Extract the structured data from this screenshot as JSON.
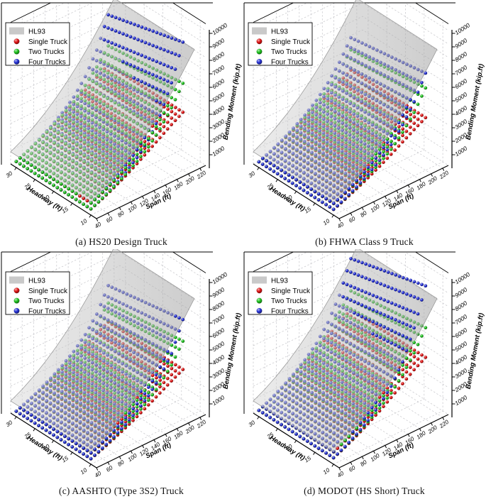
{
  "page": {
    "background": "#ffffff"
  },
  "axes": {
    "x": {
      "label": "Span (ft)",
      "ticks": [
        40,
        60,
        80,
        100,
        120,
        140,
        160,
        180,
        200,
        220
      ],
      "range": [
        40,
        230
      ]
    },
    "y": {
      "label": "Headway (ft)",
      "ticks": [
        10,
        15,
        20,
        25,
        30
      ],
      "range": [
        8.5,
        31.5
      ]
    },
    "z": {
      "label": "Bending Moment (kip.ft)",
      "ticks": [
        1000,
        2000,
        3000,
        4000,
        5000,
        6000,
        7000,
        8000,
        9000,
        10000
      ],
      "range": [
        0,
        10500
      ]
    }
  },
  "legend": {
    "position": "top-left",
    "entries": [
      {
        "key": "hl93",
        "label": "HL93",
        "swatch": "patch",
        "color": "#c9c9c9"
      },
      {
        "key": "single-truck",
        "label": "Single Truck",
        "swatch": "sphere",
        "color": "#e11414"
      },
      {
        "key": "two-trucks",
        "label": "Two Trucks",
        "swatch": "sphere",
        "color": "#1fc41f"
      },
      {
        "key": "four-trucks",
        "label": "Four Trucks",
        "swatch": "sphere",
        "color": "#2430d6"
      }
    ]
  },
  "grid_definition": {
    "span_min": 40,
    "span_max": 200,
    "span_points": 25,
    "headway_min": 10,
    "headway_max": 30,
    "headway_points": 21,
    "note": "dot sheets sampled on dense grid; series values given at span_grid for headway 10 and 30, linear in between"
  },
  "chart_data": [
    {
      "type": "scatter",
      "subtype": "scatter3d-with-surface",
      "id": "a",
      "title": "(a) HS20 Design Truck",
      "xlabel": "Span (ft)",
      "ylabel": "Headway (ft)",
      "zlabel": "Bending Moment (kip.ft)",
      "grid": true,
      "span_grid": [
        40,
        60,
        80,
        100,
        120,
        140,
        160,
        180,
        200
      ],
      "surface_hl93": {
        "label": "HL93",
        "color": "#c9c9c9",
        "spans": [
          40,
          60,
          80,
          100,
          120,
          140,
          160,
          180,
          200,
          220
        ],
        "values": [
          900,
          1350,
          1900,
          2550,
          3300,
          4150,
          5100,
          6150,
          7300,
          8550
        ]
      },
      "series": [
        {
          "key": "single-truck",
          "name": "Single Truck",
          "color": "#e11414",
          "values_h10": [
            450,
            800,
            1200,
            1650,
            2150,
            2700,
            3250,
            3800,
            4300
          ],
          "values_h30": [
            450,
            800,
            1200,
            1650,
            2150,
            2700,
            3250,
            3800,
            4300
          ]
        },
        {
          "key": "two-trucks",
          "name": "Two Trucks",
          "color": "#1fc41f",
          "values_h10": [
            460,
            830,
            1260,
            1760,
            2330,
            2980,
            3900,
            5050,
            6450
          ],
          "values_h30": [
            450,
            810,
            1220,
            1690,
            2220,
            2810,
            3600,
            4550,
            5700
          ]
        },
        {
          "key": "four-trucks",
          "name": "Four Trucks",
          "color": "#2430d6",
          "values_h10": [
            460,
            850,
            1320,
            1900,
            2600,
            3500,
            4900,
            6900,
            9500
          ],
          "values_h30": [
            450,
            820,
            1260,
            1780,
            2400,
            3150,
            4250,
            5800,
            8000
          ]
        }
      ],
      "draw_order": [
        "single-truck",
        "four-trucks",
        "two-trucks"
      ]
    },
    {
      "type": "scatter",
      "subtype": "scatter3d-with-surface",
      "id": "b",
      "title": "(b) FHWA Class 9 Truck",
      "xlabel": "Span (ft)",
      "ylabel": "Headway (ft)",
      "zlabel": "Bending Moment (kip.ft)",
      "grid": true,
      "span_grid": [
        40,
        60,
        80,
        100,
        120,
        140,
        160,
        180,
        200
      ],
      "surface_hl93": {
        "label": "HL93",
        "color": "#c9c9c9",
        "spans": [
          40,
          60,
          80,
          100,
          120,
          140,
          160,
          180,
          200,
          220
        ],
        "values": [
          900,
          1350,
          1900,
          2550,
          3300,
          4150,
          5100,
          6150,
          7300,
          8550
        ]
      },
      "series": [
        {
          "key": "single-truck",
          "name": "Single Truck",
          "color": "#e11414",
          "values_h10": [
            420,
            750,
            1120,
            1520,
            1960,
            2430,
            2930,
            3430,
            3900
          ],
          "values_h30": [
            420,
            750,
            1120,
            1520,
            1960,
            2430,
            2930,
            3430,
            3900
          ]
        },
        {
          "key": "two-trucks",
          "name": "Two Trucks",
          "color": "#1fc41f",
          "values_h10": [
            430,
            790,
            1200,
            1670,
            2200,
            2800,
            3650,
            4700,
            6100
          ],
          "values_h30": [
            420,
            760,
            1150,
            1580,
            2060,
            2600,
            3350,
            4250,
            5400
          ]
        },
        {
          "key": "four-trucks",
          "name": "Four Trucks",
          "color": "#2430d6",
          "values_h10": [
            430,
            810,
            1250,
            1780,
            2400,
            3150,
            4200,
            5500,
            7200
          ],
          "values_h30": [
            420,
            780,
            1190,
            1670,
            2230,
            2900,
            3800,
            4900,
            6300
          ]
        }
      ],
      "draw_order": [
        "single-truck",
        "two-trucks",
        "four-trucks"
      ]
    },
    {
      "type": "scatter",
      "subtype": "scatter3d-with-surface",
      "id": "c",
      "title": "(c) AASHTO (Type 3S2) Truck",
      "xlabel": "Span (ft)",
      "ylabel": "Headway (ft)",
      "zlabel": "Bending Moment (kip.ft)",
      "grid": true,
      "span_grid": [
        40,
        60,
        80,
        100,
        120,
        140,
        160,
        180,
        200
      ],
      "surface_hl93": {
        "label": "HL93",
        "color": "#c9c9c9",
        "spans": [
          40,
          60,
          80,
          100,
          120,
          140,
          160,
          180,
          200,
          220
        ],
        "values": [
          900,
          1350,
          1900,
          2550,
          3300,
          4150,
          5100,
          6150,
          7300,
          8550
        ]
      },
      "series": [
        {
          "key": "single-truck",
          "name": "Single Truck",
          "color": "#e11414",
          "values_h10": [
            400,
            720,
            1070,
            1450,
            1870,
            2320,
            2790,
            3270,
            3700
          ],
          "values_h30": [
            400,
            720,
            1070,
            1450,
            1870,
            2320,
            2790,
            3270,
            3700
          ]
        },
        {
          "key": "two-trucks",
          "name": "Two Trucks",
          "color": "#1fc41f",
          "values_h10": [
            410,
            760,
            1150,
            1600,
            2100,
            2670,
            3450,
            4450,
            5800
          ],
          "values_h30": [
            400,
            730,
            1100,
            1510,
            1960,
            2470,
            3150,
            4000,
            5100
          ]
        },
        {
          "key": "four-trucks",
          "name": "Four Trucks",
          "color": "#2430d6",
          "values_h10": [
            410,
            780,
            1200,
            1700,
            2290,
            3000,
            4000,
            5300,
            7400
          ],
          "values_h30": [
            400,
            750,
            1140,
            1600,
            2130,
            2760,
            3600,
            4700,
            6400
          ]
        }
      ],
      "draw_order": [
        "single-truck",
        "two-trucks",
        "four-trucks"
      ]
    },
    {
      "type": "scatter",
      "subtype": "scatter3d-with-surface",
      "id": "d",
      "title": "(d) MODOT (HS Short) Truck",
      "xlabel": "Span (ft)",
      "ylabel": "Headway (ft)",
      "zlabel": "Bending Moment (kip.ft)",
      "grid": true,
      "span_grid": [
        40,
        60,
        80,
        100,
        120,
        140,
        160,
        180,
        200
      ],
      "surface_hl93": {
        "label": "HL93",
        "color": "#c9c9c9",
        "spans": [
          40,
          60,
          80,
          100,
          120,
          140,
          160,
          180,
          200,
          220
        ],
        "values": [
          900,
          1350,
          1900,
          2550,
          3300,
          4150,
          5100,
          6150,
          7300,
          8550
        ]
      },
      "series": [
        {
          "key": "single-truck",
          "name": "Single Truck",
          "color": "#e11414",
          "values_h10": [
            470,
            850,
            1280,
            1760,
            2290,
            2870,
            3480,
            4100,
            4600
          ],
          "values_h30": [
            470,
            850,
            1280,
            1760,
            2290,
            2870,
            3480,
            4100,
            4600
          ]
        },
        {
          "key": "two-trucks",
          "name": "Two Trucks",
          "color": "#1fc41f",
          "values_h10": [
            480,
            880,
            1350,
            1890,
            2500,
            3200,
            4150,
            5350,
            6800
          ],
          "values_h30": [
            470,
            850,
            1300,
            1800,
            2370,
            3000,
            3850,
            4850,
            6000
          ]
        },
        {
          "key": "four-trucks",
          "name": "Four Trucks",
          "color": "#2430d6",
          "values_h10": [
            480,
            900,
            1400,
            2000,
            2750,
            3700,
            5100,
            7200,
            9900
          ],
          "values_h30": [
            470,
            870,
            1340,
            1890,
            2550,
            3350,
            4500,
            6100,
            8400
          ]
        }
      ],
      "draw_order": [
        "single-truck",
        "two-trucks",
        "four-trucks"
      ]
    }
  ]
}
